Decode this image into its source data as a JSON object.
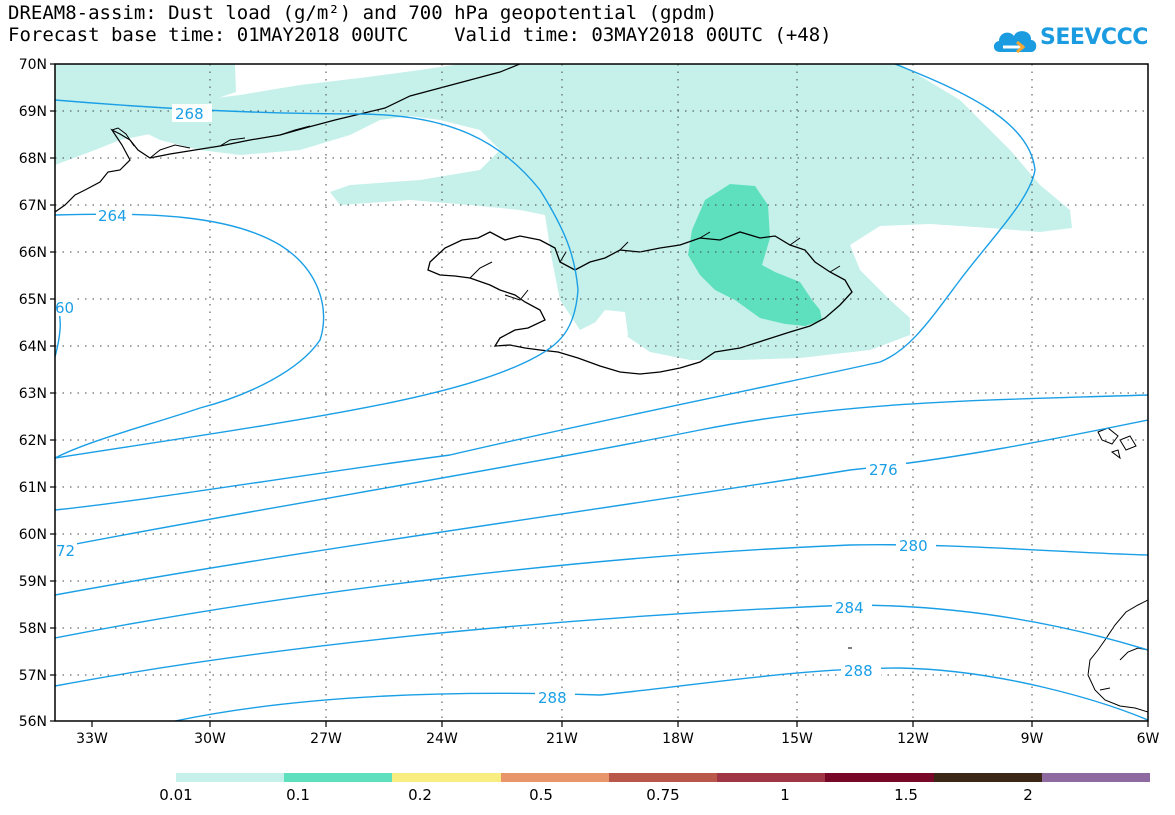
{
  "header": {
    "line1": "DREAM8-assim: Dust load (g/m²) and 700 hPa geopotential (gpdm)",
    "line2": "Forecast base time: 01MAY2018 00UTC    Valid time: 03MAY2018 00UTC (+48)"
  },
  "logo": {
    "text": "SEEVCCC",
    "icon": "cloud-logo-icon",
    "color": "#1b9be0"
  },
  "axes": {
    "lat_labels": [
      "70N",
      "69N",
      "68N",
      "67N",
      "66N",
      "65N",
      "64N",
      "63N",
      "62N",
      "61N",
      "60N",
      "59N",
      "58N",
      "57N",
      "56N"
    ],
    "lon_labels": [
      "33W",
      "30W",
      "27W",
      "24W",
      "21W",
      "18W",
      "15W",
      "12W",
      "9W",
      "6W"
    ],
    "lat_range": [
      56,
      70
    ],
    "lon_range": [
      -34.2,
      -6
    ]
  },
  "contours": {
    "color": "#1a9fe6",
    "labels": [
      "268",
      "264",
      "60",
      "72",
      "276",
      "280",
      "284",
      "288",
      "288"
    ]
  },
  "dust_colors": {
    "low": "#c5f1ea",
    "mid": "#5ee0bf"
  },
  "legend": {
    "colors": [
      "#c5f1ea",
      "#5ee0bf",
      "#f9ed80",
      "#e8956a",
      "#b9574a",
      "#a03645",
      "#780827",
      "#3c2616",
      "#8e6aa0"
    ],
    "labels": [
      "0.01",
      "0.1",
      "0.2",
      "0.5",
      "0.75",
      "1",
      "1.5",
      "2"
    ]
  }
}
